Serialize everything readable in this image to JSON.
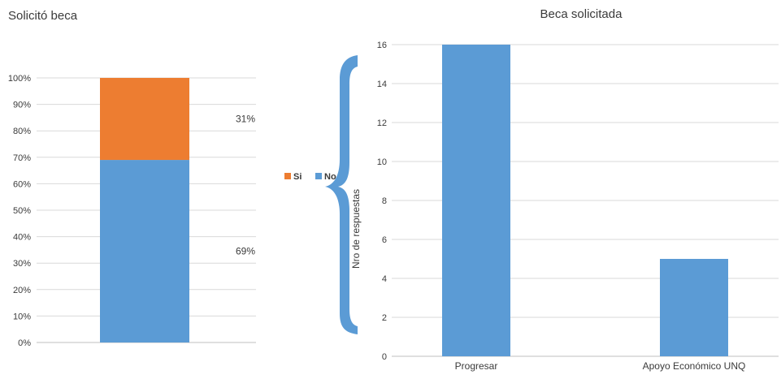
{
  "chart_data": [
    {
      "type": "bar",
      "stacked": true,
      "percent": true,
      "title": "Solicitó beca",
      "categories": [
        ""
      ],
      "series": [
        {
          "name": "No",
          "values": [
            69
          ],
          "label": "69%",
          "color": "#5b9bd5"
        },
        {
          "name": "Si",
          "values": [
            31
          ],
          "label": "31%",
          "color": "#ed7d31"
        }
      ],
      "yticks": [
        "0%",
        "10%",
        "20%",
        "30%",
        "40%",
        "50%",
        "60%",
        "70%",
        "80%",
        "90%",
        "100%"
      ],
      "ylim": [
        0,
        100
      ],
      "grid": true,
      "legend": "right"
    },
    {
      "type": "bar",
      "title": "Beca solicitada",
      "ylabel": "Nro de respuestas",
      "xlabel": "",
      "categories": [
        "Progresar",
        "Apoyo Económico UNQ"
      ],
      "values": [
        16,
        5
      ],
      "color": "#5b9bd5",
      "yticks": [
        "0",
        "2",
        "4",
        "6",
        "8",
        "10",
        "12",
        "14",
        "16"
      ],
      "ylim": [
        0,
        16
      ],
      "grid": true
    }
  ],
  "decoration": {
    "brace_color": "#5b9bd5"
  }
}
